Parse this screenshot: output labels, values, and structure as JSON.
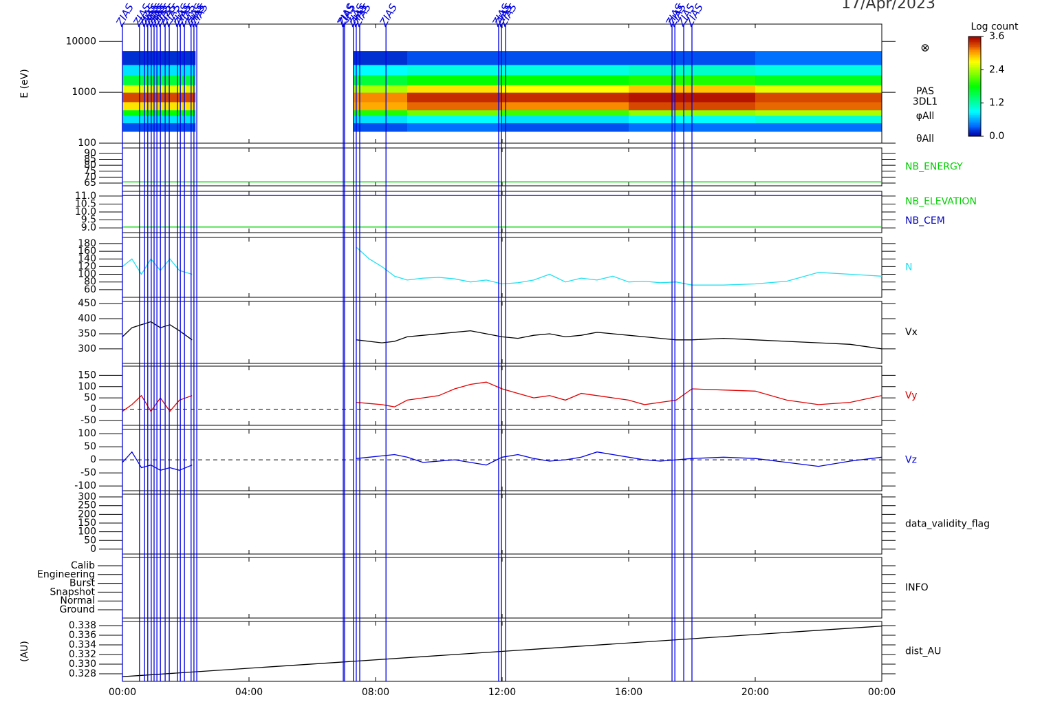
{
  "figure": {
    "title": "17/Apr/2023",
    "xlim": [
      0,
      24
    ],
    "xticks": [
      {
        "value": 0,
        "label": "00:00"
      },
      {
        "value": 4,
        "label": "04:00"
      },
      {
        "value": 8,
        "label": "08:00"
      },
      {
        "value": 12,
        "label": "12:00"
      },
      {
        "value": 16,
        "label": "16:00"
      },
      {
        "value": 20,
        "label": "20:00"
      },
      {
        "value": 24,
        "label": "00:00"
      }
    ],
    "events": {
      "label": "ZIAS",
      "color": "#0000e0",
      "x": [
        0,
        0.54,
        0.7,
        0.8,
        0.91,
        1.0,
        1.09,
        1.2,
        1.35,
        1.48,
        1.74,
        1.83,
        1.96,
        2.17,
        2.26,
        2.35,
        6.98,
        7.02,
        7.3,
        7.39,
        7.5,
        8.33,
        11.89,
        11.98,
        12.11,
        17.37,
        17.46,
        17.74,
        18.0
      ]
    }
  },
  "chart_data": [
    {
      "type": "heatmap",
      "ylabel": "E (eV)",
      "yscale": "log",
      "ylim": [
        100,
        22000
      ],
      "yticks": [
        10000,
        1000,
        100
      ],
      "x_edges": [
        0,
        2.3,
        7.3,
        9,
        12,
        16,
        20,
        24
      ],
      "y_edges": [
        170,
        250,
        350,
        450,
        650,
        1000,
        1400,
        2200,
        3500,
        6500
      ],
      "z": [
        [
          0.3,
          null,
          0.3,
          0.4,
          0.3,
          0.4,
          0.4
        ],
        [
          0.8,
          null,
          0.8,
          0.9,
          0.8,
          0.9,
          1.0
        ],
        [
          1.8,
          null,
          1.9,
          2.2,
          2.0,
          2.3,
          2.4
        ],
        [
          2.8,
          null,
          3.0,
          3.2,
          3.1,
          3.3,
          3.2
        ],
        [
          3.3,
          null,
          3.1,
          3.4,
          3.4,
          3.5,
          3.3
        ],
        [
          2.6,
          null,
          2.4,
          2.8,
          2.7,
          2.9,
          2.6
        ],
        [
          1.6,
          null,
          1.6,
          1.8,
          1.8,
          1.9,
          1.7
        ],
        [
          0.8,
          null,
          0.9,
          1.0,
          1.0,
          1.1,
          1.0
        ],
        [
          0.2,
          null,
          0.2,
          0.3,
          0.3,
          0.3,
          0.4
        ]
      ],
      "zlim": [
        0,
        3.6
      ],
      "zticks": [
        {
          "value": 0,
          "label": "0.0"
        },
        {
          "value": 1.2,
          "label": "1.2"
        },
        {
          "value": 2.4,
          "label": "2.4"
        },
        {
          "value": 3.6,
          "label": "3.6"
        }
      ],
      "colorbar_title": "Log count",
      "labels": [
        "PAS",
        "3DL1",
        "φAll",
        "θAll"
      ]
    },
    {
      "type": "line",
      "ylim": [
        62.7,
        94.6
      ],
      "yticks": [
        90,
        85,
        80,
        75,
        70,
        65
      ],
      "series": [
        {
          "name": "NB_ENERGY",
          "color": "#00d000",
          "x": [
            0,
            24
          ],
          "values": [
            66,
            66
          ]
        }
      ]
    },
    {
      "type": "line",
      "ylim": [
        8.7,
        11.3
      ],
      "yticks": [
        {
          "value": 11,
          "label": "11.0"
        },
        10.5,
        {
          "value": 10,
          "label": "10.0"
        },
        9.5,
        {
          "value": 9,
          "label": "9.0"
        }
      ],
      "series": [
        {
          "name": "NB_ELEVATION",
          "color": "#00d000",
          "x": [
            0,
            24
          ],
          "values": [
            9.05,
            9.05
          ]
        },
        {
          "name": "NB_CEM",
          "color": "#0000c0",
          "x": [
            0,
            24
          ],
          "values": [
            11.05,
            11.05
          ]
        }
      ]
    },
    {
      "type": "line",
      "ylim": [
        40,
        196
      ],
      "yticks": [
        180,
        160,
        140,
        120,
        100,
        80,
        60
      ],
      "series": [
        {
          "name": "N",
          "color": "#20e0f0",
          "x": [
            0,
            0.3,
            0.6,
            0.9,
            1.2,
            1.5,
            1.8,
            2.2,
            4.8,
            7.4,
            7.8,
            8.2,
            8.6,
            9,
            9.5,
            10,
            10.5,
            11,
            11.5,
            12,
            12.5,
            13,
            13.5,
            14,
            14.5,
            15,
            15.5,
            16,
            16.5,
            17,
            17.5,
            18,
            19,
            20,
            21,
            22,
            23,
            24
          ],
          "values": [
            120,
            140,
            100,
            140,
            110,
            140,
            110,
            100,
            null,
            170,
            140,
            120,
            95,
            85,
            90,
            92,
            88,
            80,
            85,
            75,
            78,
            85,
            100,
            80,
            90,
            85,
            95,
            80,
            82,
            78,
            80,
            72,
            72,
            75,
            82,
            105,
            100,
            95
          ]
        }
      ]
    },
    {
      "type": "line",
      "ylim": [
        252,
        457
      ],
      "yticks": [
        450,
        400,
        350,
        300
      ],
      "series": [
        {
          "name": "Vx",
          "color": "#000000",
          "x": [
            0,
            0.3,
            0.6,
            0.9,
            1.2,
            1.5,
            1.8,
            2.2,
            4.8,
            7.4,
            7.8,
            8.2,
            8.6,
            9,
            9.5,
            10,
            10.5,
            11,
            11.5,
            12,
            12.5,
            13,
            13.5,
            14,
            14.5,
            15,
            15.5,
            16,
            16.5,
            17,
            17.5,
            18,
            19,
            20,
            21,
            22,
            23,
            24
          ],
          "values": [
            340,
            370,
            380,
            390,
            370,
            380,
            360,
            330,
            null,
            330,
            325,
            320,
            325,
            340,
            345,
            350,
            355,
            360,
            350,
            340,
            335,
            345,
            350,
            340,
            345,
            355,
            350,
            345,
            340,
            335,
            330,
            330,
            335,
            330,
            325,
            320,
            315,
            300
          ]
        }
      ]
    },
    {
      "type": "line",
      "ylim": [
        -72,
        191
      ],
      "yticks": [
        150,
        100,
        50,
        0,
        -50
      ],
      "reference_line": 0,
      "series": [
        {
          "name": "Vy",
          "color": "#e00000",
          "x": [
            0,
            0.3,
            0.6,
            0.9,
            1.2,
            1.5,
            1.8,
            2.2,
            4.8,
            7.4,
            7.8,
            8.2,
            8.6,
            9,
            9.5,
            10,
            10.5,
            11,
            11.5,
            12,
            12.5,
            13,
            13.5,
            14,
            14.5,
            15,
            15.5,
            16,
            16.5,
            17,
            17.5,
            18,
            19,
            20,
            21,
            22,
            23,
            24
          ],
          "values": [
            -10,
            20,
            60,
            -10,
            50,
            -10,
            40,
            60,
            null,
            30,
            25,
            20,
            10,
            40,
            50,
            60,
            90,
            110,
            120,
            90,
            70,
            50,
            60,
            40,
            70,
            60,
            50,
            40,
            20,
            30,
            40,
            90,
            85,
            80,
            40,
            20,
            30,
            60
          ]
        }
      ]
    },
    {
      "type": "line",
      "ylim": [
        -118,
        116
      ],
      "yticks": [
        100,
        50,
        0,
        -50,
        -100
      ],
      "reference_line": 0,
      "series": [
        {
          "name": "Vz",
          "color": "#0000e0",
          "x": [
            0,
            0.3,
            0.6,
            0.9,
            1.2,
            1.5,
            1.8,
            2.2,
            4.8,
            7.4,
            7.8,
            8.2,
            8.6,
            9,
            9.5,
            10,
            10.5,
            11,
            11.5,
            12,
            12.5,
            13,
            13.5,
            14,
            14.5,
            15,
            15.5,
            16,
            16.5,
            17,
            17.5,
            18,
            19,
            20,
            21,
            22,
            23,
            24
          ],
          "values": [
            -10,
            30,
            -30,
            -20,
            -40,
            -30,
            -40,
            -20,
            null,
            5,
            10,
            15,
            20,
            10,
            -10,
            -5,
            0,
            -10,
            -20,
            10,
            20,
            5,
            -5,
            0,
            10,
            30,
            20,
            10,
            0,
            -5,
            0,
            5,
            10,
            5,
            -10,
            -25,
            -5,
            10
          ]
        }
      ]
    },
    {
      "type": "line",
      "ylim": [
        -28,
        316
      ],
      "yticks": [
        300,
        250,
        200,
        150,
        100,
        50,
        0
      ],
      "series": [
        {
          "name": "data_validity_flag",
          "color": "#000000",
          "x": [],
          "values": []
        }
      ]
    },
    {
      "type": "category",
      "categories": [
        "Ground",
        "Normal",
        "Snapshot",
        "Burst",
        "Engineering",
        "Calib"
      ],
      "series": [
        {
          "name": "INFO",
          "color": "#000000",
          "x": [],
          "values": []
        }
      ]
    },
    {
      "type": "line",
      "ylabel": "(AU)",
      "ylim": [
        0.32643,
        0.33886
      ],
      "yticks": [
        {
          "value": 0.338,
          "label": "0.338"
        },
        {
          "value": 0.336,
          "label": "0.336"
        },
        {
          "value": 0.334,
          "label": "0.334"
        },
        {
          "value": 0.332,
          "label": "0.332"
        },
        {
          "value": 0.33,
          "label": "0.330"
        },
        {
          "value": 0.328,
          "label": "0.328"
        }
      ],
      "series": [
        {
          "name": "dist_AU",
          "color": "#000000",
          "x": [
            0,
            24
          ],
          "values": [
            0.3274,
            0.3379
          ]
        }
      ]
    }
  ]
}
